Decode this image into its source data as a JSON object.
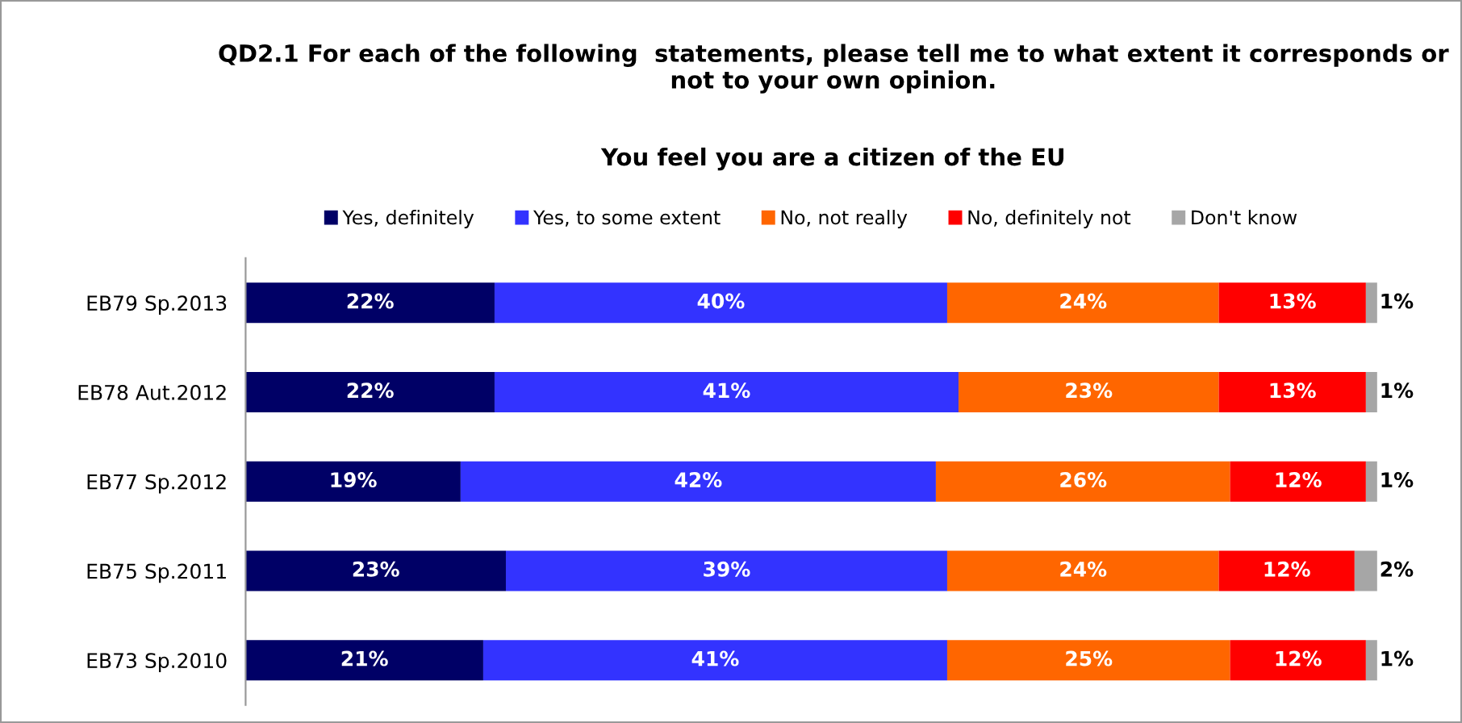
{
  "chart_data": {
    "type": "bar",
    "orientation": "horizontal",
    "stacked": true,
    "title": "QD2.1 For each of the following  statements, please tell me to what extent it corresponds or\nnot to your own opinion.",
    "subtitle": "You feel you are a citizen of the EU",
    "categories": [
      "EB79 Sp.2013",
      "EB78 Aut.2012",
      "EB77 Sp.2012",
      "EB75 Sp.2011",
      "EB73 Sp.2010"
    ],
    "series": [
      {
        "name": "Yes, definitely",
        "color": "#000066",
        "values": [
          22,
          22,
          19,
          23,
          21
        ],
        "value_labels": [
          "22%",
          "22%",
          "19%",
          "23%",
          "21%"
        ]
      },
      {
        "name": "Yes, to some extent",
        "color": "#3333ff",
        "values": [
          40,
          41,
          42,
          39,
          41
        ],
        "value_labels": [
          "40%",
          "41%",
          "42%",
          "39%",
          "41%"
        ]
      },
      {
        "name": "No, not really",
        "color": "#ff6600",
        "values": [
          24,
          23,
          26,
          24,
          25
        ],
        "value_labels": [
          "24%",
          "23%",
          "26%",
          "24%",
          "25%"
        ]
      },
      {
        "name": "No, definitely not",
        "color": "#ff0000",
        "values": [
          13,
          13,
          12,
          12,
          12
        ],
        "value_labels": [
          "13%",
          "13%",
          "12%",
          "12%",
          "12%"
        ]
      },
      {
        "name": "Don't know",
        "color": "#a6a6a6",
        "values": [
          1,
          1,
          1,
          2,
          1
        ],
        "value_labels": [
          "1%",
          "1%",
          "1%",
          "2%",
          "1%"
        ]
      }
    ],
    "legend": "top",
    "grid": false
  }
}
